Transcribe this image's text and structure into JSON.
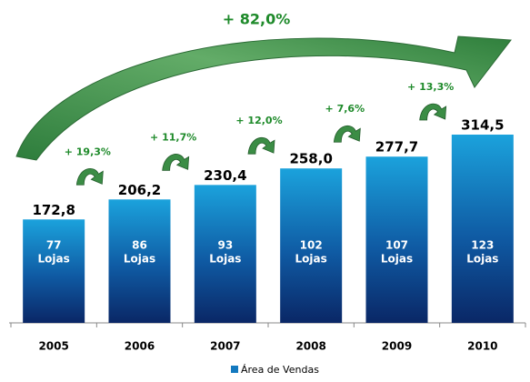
{
  "chart_data": {
    "type": "bar",
    "total_growth": "+ 82,0%",
    "categories": [
      "2005",
      "2006",
      "2007",
      "2008",
      "2009",
      "2010"
    ],
    "series": [
      {
        "name": "Área de Vendas",
        "color": "#1379bf",
        "values": [
          172.8,
          206.2,
          230.4,
          258.0,
          277.7,
          314.5
        ],
        "value_labels": [
          "172,8",
          "206,2",
          "230,4",
          "258,0",
          "277,7",
          "314,5"
        ]
      }
    ],
    "stores": [
      77,
      86,
      93,
      102,
      107,
      123
    ],
    "stores_label": "Lojas",
    "growth_labels": [
      "+ 19,3%",
      "+ 11,7%",
      "+ 12,0%",
      "+ 7,6%",
      "+ 13,3%"
    ]
  }
}
